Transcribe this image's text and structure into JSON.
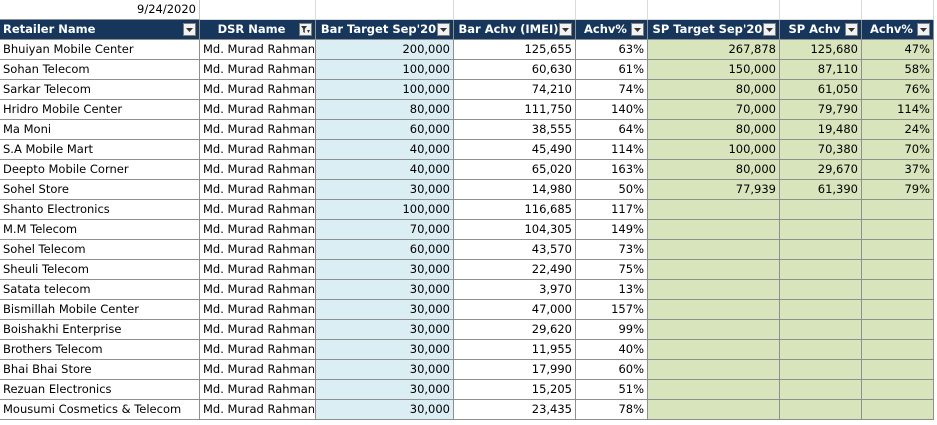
{
  "date": "9/24/2020",
  "headers": {
    "retailer": "Retailer Name",
    "dsr": "DSR Name",
    "bar_target": "Bar Target Sep'20",
    "bar_achv": "Bar Achv (IMEI)",
    "bar_pct": "Achv%",
    "sp_target": "SP Target Sep'20",
    "sp_achv": "SP Achv",
    "sp_pct": "Achv%"
  },
  "rows": [
    {
      "retailer": "Bhuiyan Mobile Center",
      "dsr": "Md. Murad Rahman",
      "bar_target": "200,000",
      "bar_achv": "125,655",
      "bar_pct": "63%",
      "sp_target": "267,878",
      "sp_achv": "125,680",
      "sp_pct": "47%"
    },
    {
      "retailer": "Sohan Telecom",
      "dsr": "Md. Murad Rahman",
      "bar_target": "100,000",
      "bar_achv": "60,630",
      "bar_pct": "61%",
      "sp_target": "150,000",
      "sp_achv": "87,110",
      "sp_pct": "58%"
    },
    {
      "retailer": "Sarkar Telecom",
      "dsr": "Md. Murad Rahman",
      "bar_target": "100,000",
      "bar_achv": "74,210",
      "bar_pct": "74%",
      "sp_target": "80,000",
      "sp_achv": "61,050",
      "sp_pct": "76%"
    },
    {
      "retailer": "Hridro Mobile Center",
      "dsr": "Md. Murad Rahman",
      "bar_target": "80,000",
      "bar_achv": "111,750",
      "bar_pct": "140%",
      "sp_target": "70,000",
      "sp_achv": "79,790",
      "sp_pct": "114%"
    },
    {
      "retailer": "Ma Moni",
      "dsr": "Md. Murad Rahman",
      "bar_target": "60,000",
      "bar_achv": "38,555",
      "bar_pct": "64%",
      "sp_target": "80,000",
      "sp_achv": "19,480",
      "sp_pct": "24%"
    },
    {
      "retailer": "S.A Mobile Mart",
      "dsr": "Md. Murad Rahman",
      "bar_target": "40,000",
      "bar_achv": "45,490",
      "bar_pct": "114%",
      "sp_target": "100,000",
      "sp_achv": "70,380",
      "sp_pct": "70%"
    },
    {
      "retailer": "Deepto Mobile Corner",
      "dsr": "Md. Murad Rahman",
      "bar_target": "40,000",
      "bar_achv": "65,020",
      "bar_pct": "163%",
      "sp_target": "80,000",
      "sp_achv": "29,670",
      "sp_pct": "37%"
    },
    {
      "retailer": "Sohel Store",
      "dsr": "Md. Murad Rahman",
      "bar_target": "30,000",
      "bar_achv": "14,980",
      "bar_pct": "50%",
      "sp_target": "77,939",
      "sp_achv": "61,390",
      "sp_pct": "79%"
    },
    {
      "retailer": "Shanto Electronics",
      "dsr": "Md. Murad Rahman",
      "bar_target": "100,000",
      "bar_achv": "116,685",
      "bar_pct": "117%",
      "sp_target": "",
      "sp_achv": "",
      "sp_pct": ""
    },
    {
      "retailer": "M.M Telecom",
      "dsr": "Md. Murad Rahman",
      "bar_target": "70,000",
      "bar_achv": "104,305",
      "bar_pct": "149%",
      "sp_target": "",
      "sp_achv": "",
      "sp_pct": ""
    },
    {
      "retailer": "Sohel Telecom",
      "dsr": "Md. Murad Rahman",
      "bar_target": "60,000",
      "bar_achv": "43,570",
      "bar_pct": "73%",
      "sp_target": "",
      "sp_achv": "",
      "sp_pct": ""
    },
    {
      "retailer": "Sheuli Telecom",
      "dsr": "Md. Murad Rahman",
      "bar_target": "30,000",
      "bar_achv": "22,490",
      "bar_pct": "75%",
      "sp_target": "",
      "sp_achv": "",
      "sp_pct": ""
    },
    {
      "retailer": "Satata telecom",
      "dsr": "Md. Murad Rahman",
      "bar_target": "30,000",
      "bar_achv": "3,970",
      "bar_pct": "13%",
      "sp_target": "",
      "sp_achv": "",
      "sp_pct": ""
    },
    {
      "retailer": "Bismillah Mobile Center",
      "dsr": "Md. Murad Rahman",
      "bar_target": "30,000",
      "bar_achv": "47,000",
      "bar_pct": "157%",
      "sp_target": "",
      "sp_achv": "",
      "sp_pct": ""
    },
    {
      "retailer": "Boishakhi Enterprise",
      "dsr": "Md. Murad Rahman",
      "bar_target": "30,000",
      "bar_achv": "29,620",
      "bar_pct": "99%",
      "sp_target": "",
      "sp_achv": "",
      "sp_pct": ""
    },
    {
      "retailer": "Brothers Telecom",
      "dsr": "Md. Murad Rahman",
      "bar_target": "30,000",
      "bar_achv": "11,955",
      "bar_pct": "40%",
      "sp_target": "",
      "sp_achv": "",
      "sp_pct": ""
    },
    {
      "retailer": "Bhai Bhai Store",
      "dsr": "Md. Murad Rahman",
      "bar_target": "30,000",
      "bar_achv": "17,990",
      "bar_pct": "60%",
      "sp_target": "",
      "sp_achv": "",
      "sp_pct": ""
    },
    {
      "retailer": "Rezuan Electronics",
      "dsr": "Md. Murad Rahman",
      "bar_target": "30,000",
      "bar_achv": "15,205",
      "bar_pct": "51%",
      "sp_target": "",
      "sp_achv": "",
      "sp_pct": ""
    },
    {
      "retailer": "Mousumi Cosmetics & Telecom",
      "dsr": "Md. Murad Rahman",
      "bar_target": "30,000",
      "bar_achv": "23,435",
      "bar_pct": "78%",
      "sp_target": "",
      "sp_achv": "",
      "sp_pct": ""
    }
  ],
  "colors": {
    "header_bg": "#16365c",
    "blue_fill": "#dbeef4",
    "green_fill": "#d8e4bc"
  },
  "icons": {
    "dsr_filter": "filter-active-icon",
    "other_filters": "dropdown-arrow-icon"
  }
}
